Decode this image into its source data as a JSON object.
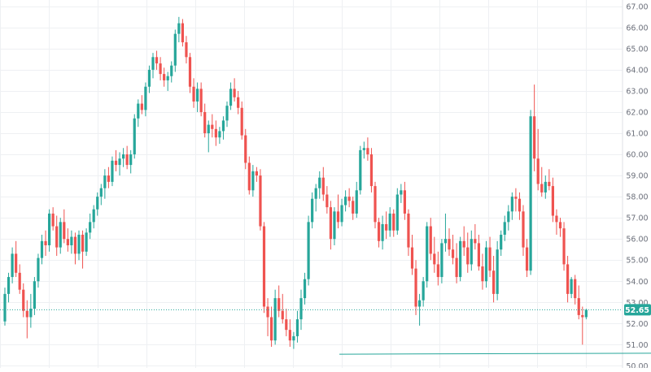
{
  "chart_data": {
    "type": "candlestick",
    "ylim": [
      49.9,
      67.3
    ],
    "y_ticks": [
      "50.00",
      "51.00",
      "52.00",
      "53.00",
      "54.00",
      "55.00",
      "56.00",
      "57.00",
      "58.00",
      "59.00",
      "60.00",
      "61.00",
      "62.00",
      "63.00",
      "64.00",
      "65.00",
      "66.00",
      "67.00"
    ],
    "last_price": "52.65",
    "grid": true,
    "colors": {
      "up": "#26a69a",
      "down": "#ef5350",
      "grid": "#eef0f3",
      "last_price": "#26a69a"
    },
    "support_line": {
      "from_index": 91,
      "to_index": 186,
      "y_start": 50.55,
      "y_end": 50.6
    },
    "candles": [
      [
        52.1,
        53.7,
        51.9,
        53.4
      ],
      [
        53.4,
        54.4,
        53.0,
        54.2
      ],
      [
        54.2,
        55.6,
        53.9,
        55.3
      ],
      [
        55.3,
        55.9,
        54.2,
        54.4
      ],
      [
        54.4,
        54.8,
        53.4,
        53.6
      ],
      [
        53.6,
        53.9,
        52.3,
        52.6
      ],
      [
        52.6,
        53.1,
        51.3,
        52.3
      ],
      [
        52.3,
        53.4,
        51.8,
        52.7
      ],
      [
        52.7,
        54.2,
        52.4,
        54.0
      ],
      [
        54.0,
        55.3,
        53.7,
        55.1
      ],
      [
        55.1,
        56.2,
        54.8,
        55.9
      ],
      [
        55.9,
        56.4,
        55.2,
        55.7
      ],
      [
        55.7,
        57.4,
        55.4,
        57.2
      ],
      [
        57.2,
        57.5,
        56.4,
        56.6
      ],
      [
        56.6,
        57.1,
        55.2,
        55.6
      ],
      [
        55.6,
        57.0,
        55.3,
        56.8
      ],
      [
        56.8,
        57.4,
        55.8,
        56.0
      ],
      [
        56.0,
        56.5,
        55.4,
        55.7
      ],
      [
        55.7,
        56.4,
        55.3,
        56.1
      ],
      [
        56.1,
        56.3,
        54.8,
        55.3
      ],
      [
        55.3,
        56.4,
        55.0,
        56.2
      ],
      [
        56.2,
        56.4,
        54.6,
        55.4
      ],
      [
        55.4,
        56.5,
        55.2,
        56.3
      ],
      [
        56.3,
        57.2,
        56.0,
        56.8
      ],
      [
        56.8,
        57.6,
        56.5,
        57.4
      ],
      [
        57.4,
        58.2,
        57.1,
        58.0
      ],
      [
        58.0,
        58.6,
        57.6,
        58.4
      ],
      [
        58.4,
        59.3,
        57.9,
        59.0
      ],
      [
        59.0,
        59.4,
        58.4,
        58.7
      ],
      [
        58.7,
        59.9,
        58.5,
        59.7
      ],
      [
        59.7,
        60.2,
        59.2,
        59.5
      ],
      [
        59.5,
        60.1,
        59.0,
        59.8
      ],
      [
        59.8,
        60.3,
        59.4,
        60.0
      ],
      [
        60.0,
        60.4,
        59.3,
        59.5
      ],
      [
        59.5,
        60.2,
        59.1,
        60.0
      ],
      [
        60.0,
        61.9,
        59.8,
        61.7
      ],
      [
        61.7,
        62.6,
        61.3,
        62.4
      ],
      [
        62.4,
        62.8,
        61.9,
        62.1
      ],
      [
        62.1,
        63.4,
        61.8,
        63.2
      ],
      [
        63.2,
        64.2,
        62.9,
        64.0
      ],
      [
        64.0,
        64.8,
        63.6,
        64.6
      ],
      [
        64.6,
        64.9,
        64.0,
        64.3
      ],
      [
        64.3,
        64.6,
        63.5,
        63.8
      ],
      [
        63.8,
        64.1,
        63.2,
        63.5
      ],
      [
        63.5,
        63.9,
        63.0,
        63.7
      ],
      [
        63.7,
        64.4,
        63.4,
        64.2
      ],
      [
        64.2,
        65.9,
        63.9,
        65.7
      ],
      [
        65.7,
        66.5,
        65.3,
        66.2
      ],
      [
        66.2,
        66.4,
        65.1,
        65.3
      ],
      [
        65.3,
        65.6,
        64.3,
        64.6
      ],
      [
        64.6,
        64.8,
        62.9,
        63.2
      ],
      [
        63.2,
        63.6,
        62.2,
        62.5
      ],
      [
        62.5,
        63.4,
        62.0,
        63.1
      ],
      [
        63.1,
        63.4,
        61.8,
        62.0
      ],
      [
        62.0,
        62.4,
        60.8,
        61.0
      ],
      [
        61.0,
        61.6,
        60.1,
        61.4
      ],
      [
        61.4,
        61.9,
        60.8,
        61.2
      ],
      [
        61.2,
        61.6,
        60.4,
        60.8
      ],
      [
        60.8,
        61.3,
        60.5,
        61.1
      ],
      [
        61.1,
        61.8,
        60.7,
        61.6
      ],
      [
        61.6,
        62.5,
        61.3,
        62.3
      ],
      [
        62.3,
        63.4,
        62.1,
        63.1
      ],
      [
        63.1,
        63.6,
        62.5,
        62.7
      ],
      [
        62.7,
        63.0,
        61.9,
        62.2
      ],
      [
        62.2,
        62.5,
        60.7,
        60.9
      ],
      [
        60.9,
        61.2,
        59.3,
        59.6
      ],
      [
        59.6,
        59.9,
        58.1,
        58.3
      ],
      [
        58.3,
        59.5,
        58.0,
        59.2
      ],
      [
        59.2,
        59.4,
        58.7,
        59.0
      ],
      [
        59.0,
        59.3,
        56.4,
        56.6
      ],
      [
        56.6,
        56.8,
        52.5,
        52.8
      ],
      [
        52.8,
        53.2,
        51.4,
        52.3
      ],
      [
        52.3,
        52.8,
        50.9,
        51.2
      ],
      [
        51.2,
        53.6,
        51.0,
        53.2
      ],
      [
        53.2,
        53.8,
        52.3,
        52.6
      ],
      [
        52.6,
        53.4,
        52.0,
        52.2
      ],
      [
        52.2,
        52.7,
        51.4,
        51.7
      ],
      [
        51.7,
        52.2,
        50.9,
        51.2
      ],
      [
        51.2,
        51.6,
        50.8,
        51.4
      ],
      [
        51.4,
        52.6,
        51.1,
        52.2
      ],
      [
        52.2,
        53.6,
        51.7,
        53.2
      ],
      [
        53.2,
        54.4,
        52.9,
        54.1
      ],
      [
        54.1,
        57.1,
        53.8,
        56.8
      ],
      [
        56.8,
        58.2,
        56.5,
        57.9
      ],
      [
        57.9,
        58.6,
        57.3,
        58.4
      ],
      [
        58.4,
        59.2,
        57.9,
        58.9
      ],
      [
        58.9,
        59.4,
        57.8,
        58.1
      ],
      [
        58.1,
        58.5,
        57.2,
        57.5
      ],
      [
        57.5,
        57.8,
        55.5,
        56.0
      ],
      [
        56.0,
        57.5,
        55.7,
        57.3
      ],
      [
        57.3,
        58.1,
        56.5,
        56.8
      ],
      [
        56.8,
        57.9,
        56.6,
        57.6
      ],
      [
        57.6,
        58.3,
        57.3,
        58.0
      ],
      [
        58.0,
        58.4,
        57.5,
        57.8
      ],
      [
        57.8,
        58.0,
        56.9,
        57.2
      ],
      [
        57.2,
        58.7,
        57.0,
        58.3
      ],
      [
        58.3,
        60.4,
        58.1,
        60.2
      ],
      [
        60.2,
        60.6,
        59.8,
        60.3
      ],
      [
        60.3,
        60.8,
        59.7,
        60.0
      ],
      [
        60.0,
        60.3,
        58.2,
        58.5
      ],
      [
        58.5,
        58.7,
        56.5,
        56.8
      ],
      [
        56.8,
        57.0,
        55.6,
        55.9
      ],
      [
        55.9,
        57.1,
        55.5,
        56.7
      ],
      [
        56.7,
        57.3,
        56.0,
        56.4
      ],
      [
        56.4,
        57.5,
        56.1,
        57.2
      ],
      [
        57.2,
        57.4,
        56.1,
        56.4
      ],
      [
        56.4,
        58.4,
        56.2,
        58.1
      ],
      [
        58.1,
        58.6,
        57.7,
        58.3
      ],
      [
        58.3,
        58.7,
        56.9,
        57.2
      ],
      [
        57.2,
        57.4,
        55.2,
        55.6
      ],
      [
        55.6,
        56.2,
        54.3,
        54.6
      ],
      [
        54.6,
        55.0,
        52.4,
        52.8
      ],
      [
        52.8,
        53.4,
        51.9,
        53.1
      ],
      [
        53.1,
        54.2,
        52.8,
        54.0
      ],
      [
        54.0,
        56.8,
        53.7,
        56.6
      ],
      [
        56.6,
        57.0,
        55.0,
        55.3
      ],
      [
        55.3,
        56.1,
        54.4,
        54.8
      ],
      [
        54.8,
        55.4,
        53.8,
        54.2
      ],
      [
        54.2,
        56.0,
        53.9,
        55.8
      ],
      [
        55.8,
        57.2,
        55.4,
        56.0
      ],
      [
        56.0,
        56.5,
        55.2,
        55.5
      ],
      [
        55.5,
        56.2,
        54.8,
        55.1
      ],
      [
        55.1,
        55.8,
        53.9,
        54.2
      ],
      [
        54.2,
        56.1,
        54.0,
        55.9
      ],
      [
        55.9,
        56.6,
        55.2,
        55.6
      ],
      [
        55.6,
        56.3,
        54.4,
        54.8
      ],
      [
        54.8,
        56.4,
        54.5,
        56.0
      ],
      [
        56.0,
        56.7,
        55.5,
        55.8
      ],
      [
        55.8,
        56.2,
        54.5,
        54.7
      ],
      [
        54.7,
        55.3,
        53.6,
        54.0
      ],
      [
        54.0,
        55.9,
        53.7,
        55.6
      ],
      [
        55.6,
        56.1,
        54.2,
        54.5
      ],
      [
        54.5,
        55.2,
        53.0,
        53.4
      ],
      [
        53.4,
        55.9,
        53.1,
        55.5
      ],
      [
        55.5,
        56.4,
        55.2,
        56.2
      ],
      [
        56.2,
        57.1,
        55.9,
        56.8
      ],
      [
        56.8,
        57.6,
        56.4,
        57.3
      ],
      [
        57.3,
        58.2,
        56.9,
        58.0
      ],
      [
        58.0,
        58.4,
        57.3,
        57.9
      ],
      [
        57.9,
        58.2,
        56.9,
        57.3
      ],
      [
        57.3,
        57.6,
        55.2,
        55.6
      ],
      [
        55.6,
        56.0,
        54.2,
        54.5
      ],
      [
        54.5,
        62.1,
        54.3,
        61.8
      ],
      [
        61.8,
        63.3,
        59.2,
        59.8
      ],
      [
        59.8,
        61.2,
        58.3,
        58.6
      ],
      [
        58.6,
        59.4,
        58.0,
        58.2
      ],
      [
        58.2,
        59.0,
        57.9,
        58.7
      ],
      [
        58.7,
        59.3,
        58.3,
        58.5
      ],
      [
        58.5,
        58.9,
        56.8,
        57.1
      ],
      [
        57.1,
        57.4,
        56.2,
        56.8
      ],
      [
        56.8,
        57.0,
        56.1,
        56.5
      ],
      [
        56.5,
        56.8,
        54.5,
        54.8
      ],
      [
        54.8,
        55.2,
        53.0,
        53.4
      ],
      [
        53.4,
        54.2,
        53.2,
        54.1
      ],
      [
        54.1,
        54.3,
        52.9,
        53.2
      ],
      [
        53.2,
        53.8,
        52.2,
        52.4
      ],
      [
        52.4,
        52.8,
        51.0,
        52.3
      ],
      [
        52.3,
        52.7,
        52.2,
        52.65
      ]
    ]
  }
}
